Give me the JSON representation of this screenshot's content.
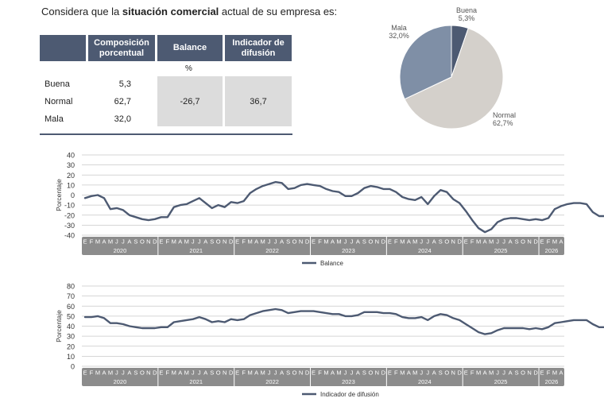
{
  "title": {
    "prefix": "Considera que la ",
    "bold": "situación comercial",
    "suffix": " actual de su empresa es:"
  },
  "table": {
    "headers": [
      "Composición porcentual",
      "Balance",
      "Indicador de difusión"
    ],
    "unit": "%",
    "rows": [
      {
        "label": "Buena",
        "value": "5,3"
      },
      {
        "label": "Normal",
        "value": "62,7"
      },
      {
        "label": "Mala",
        "value": "32,0"
      }
    ],
    "balance": "-26,7",
    "difusion": "36,7"
  },
  "colors": {
    "header": "#4d5a72",
    "line": "#4d5a72",
    "buena": "#4d5a72",
    "normal": "#d4d0cb",
    "mala": "#7f8fa6",
    "band": "#8c8c8c"
  },
  "chart_data": [
    {
      "type": "pie",
      "slices": [
        {
          "label": "Buena",
          "value": 5.3,
          "value_text": "5,3%"
        },
        {
          "label": "Normal",
          "value": 62.7,
          "value_text": "62,7%"
        },
        {
          "label": "Mala",
          "value": 32.0,
          "value_text": "32,0%"
        }
      ]
    },
    {
      "type": "line",
      "ylabel": "Porcentaje",
      "ylim": [
        -40,
        40
      ],
      "yticks": [
        40,
        30,
        20,
        10,
        0,
        -10,
        -20,
        -30,
        -40
      ],
      "months": [
        "E",
        "F",
        "M",
        "A",
        "M",
        "J",
        "J",
        "A",
        "S",
        "O",
        "N",
        "D"
      ],
      "months_2026": [
        "E",
        "F",
        "M",
        "A"
      ],
      "years": [
        "2020",
        "2021",
        "2022",
        "2023",
        "2024",
        "2025",
        "2026"
      ],
      "legend": "Balance",
      "grid": true,
      "series": [
        {
          "values": [
            -3,
            -1,
            0,
            -3,
            -14,
            -13,
            -15,
            -20,
            -22,
            -24,
            -25,
            -24,
            -22,
            -22,
            -12,
            -10,
            -9,
            -6,
            -3,
            -8,
            -13,
            -10,
            -12,
            -7,
            -8,
            -6,
            2,
            6,
            9,
            11,
            13,
            12,
            6,
            7,
            10,
            11,
            10,
            9,
            6,
            4,
            3,
            -1,
            -1,
            2,
            7,
            9,
            8,
            6,
            6,
            3,
            -2,
            -4,
            -5,
            -2,
            -9,
            -1,
            5,
            3,
            -4,
            -8,
            -16,
            -25,
            -33,
            -37,
            -34,
            -27,
            -24,
            -23,
            -23,
            -24,
            -25,
            -24,
            -25,
            -23,
            -14,
            -11,
            -9,
            -8,
            -8,
            -9,
            -17,
            -21,
            -21,
            -24,
            -22,
            -21,
            -21,
            -22,
            -22,
            -19,
            -10,
            -14,
            -18,
            -27,
            -29,
            -26.7
          ]
        }
      ]
    },
    {
      "type": "line",
      "ylabel": "Porcentaje",
      "ylim": [
        0,
        80
      ],
      "yticks": [
        80,
        70,
        60,
        50,
        40,
        30,
        20,
        10,
        0
      ],
      "months": [
        "E",
        "F",
        "M",
        "A",
        "M",
        "J",
        "J",
        "A",
        "S",
        "O",
        "N",
        "D"
      ],
      "months_2026": [
        "E",
        "F",
        "M",
        "A"
      ],
      "years": [
        "2020",
        "2021",
        "2022",
        "2023",
        "2024",
        "2025",
        "2026"
      ],
      "legend": "Indicador de difusión",
      "grid": true,
      "series": [
        {
          "values": [
            49,
            49,
            50,
            48,
            43,
            43,
            42,
            40,
            39,
            38,
            38,
            38,
            39,
            39,
            44,
            45,
            46,
            47,
            49,
            47,
            44,
            45,
            44,
            47,
            46,
            47,
            51,
            53,
            55,
            56,
            57,
            56,
            53,
            54,
            55,
            55,
            55,
            54,
            53,
            52,
            52,
            50,
            50,
            51,
            54,
            54,
            54,
            53,
            53,
            52,
            49,
            48,
            48,
            49,
            46,
            50,
            52,
            51,
            48,
            46,
            42,
            38,
            34,
            32,
            33,
            36,
            38,
            38,
            38,
            38,
            37,
            38,
            37,
            39,
            43,
            44,
            45,
            46,
            46,
            46,
            42,
            39,
            39,
            39,
            38,
            39,
            39,
            39,
            39,
            40,
            45,
            43,
            40,
            36,
            35,
            36.7
          ]
        }
      ]
    }
  ]
}
